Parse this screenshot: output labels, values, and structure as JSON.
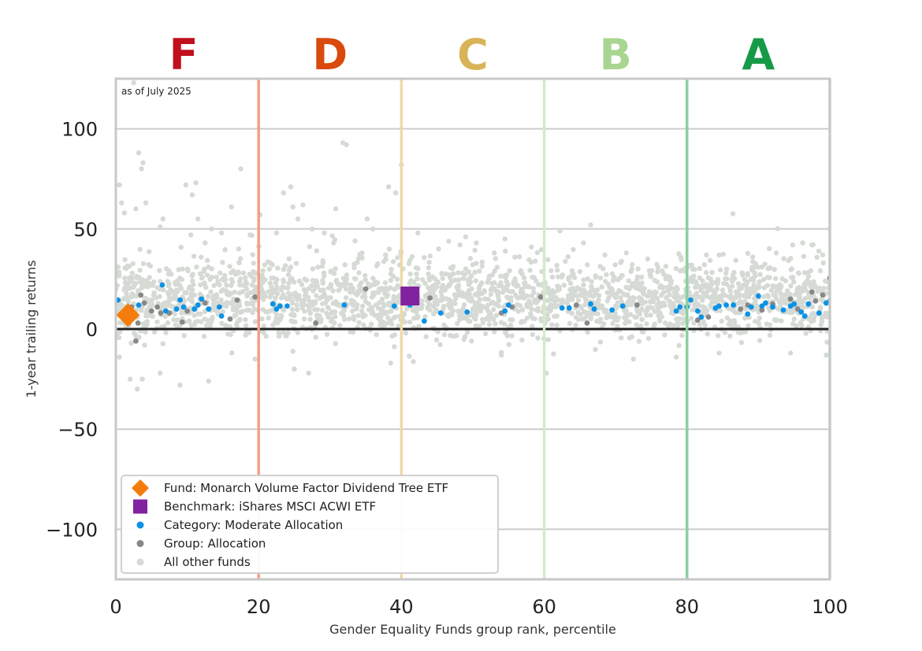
{
  "chart_data": {
    "type": "scatter",
    "title": "",
    "xlabel": "Gender Equality Funds group rank, percentile",
    "ylabel": "1-year trailing returns",
    "xlim": [
      0,
      100
    ],
    "ylim": [
      -125,
      125
    ],
    "x_ticks": [
      0,
      20,
      40,
      60,
      80,
      100
    ],
    "y_ticks": [
      100,
      50,
      0,
      -50,
      -100
    ],
    "grid": "horizontal",
    "legend_position": "lower-left",
    "note": "as of July 2025",
    "grades": [
      {
        "letter": "F",
        "x_center": 9.5,
        "color": "#c0101e"
      },
      {
        "letter": "D",
        "x_center": 30,
        "color": "#d94a0c"
      },
      {
        "letter": "C",
        "x_center": 50,
        "color": "#d9b357"
      },
      {
        "letter": "B",
        "x_center": 70,
        "color": "#a8d590"
      },
      {
        "letter": "A",
        "x_center": 90,
        "color": "#179a47"
      }
    ],
    "boundaries": [
      {
        "x": 20,
        "color": "#f0a088"
      },
      {
        "x": 40,
        "color": "#f0d9a6"
      },
      {
        "x": 60,
        "color": "#d3ebc8"
      },
      {
        "x": 80,
        "color": "#8bcf9e"
      },
      {
        "x": 100,
        "color": "#b8dcc4"
      }
    ],
    "series": [
      {
        "name": "Fund: Monarch Volume Factor Dividend Tree ETF",
        "marker": "diamond",
        "color": "#f57c0c",
        "points": [
          [
            1.7,
            7
          ]
        ]
      },
      {
        "name": "Benchmark: iShares MSCI ACWI ETF",
        "marker": "square",
        "color": "#8122a0",
        "points": [
          [
            41.2,
            16.5
          ]
        ]
      },
      {
        "name": "Category: Moderate Allocation",
        "marker": "dot",
        "color": "#0a92e6",
        "points": [
          [
            0.3,
            14.5
          ],
          [
            1.3,
            9
          ],
          [
            2.5,
            8
          ],
          [
            3.2,
            12
          ],
          [
            6.5,
            22
          ],
          [
            7,
            9
          ],
          [
            8.5,
            10
          ],
          [
            9,
            14.5
          ],
          [
            9.5,
            11
          ],
          [
            11,
            10
          ],
          [
            11.5,
            12
          ],
          [
            12,
            15
          ],
          [
            13,
            10
          ],
          [
            14.5,
            11
          ],
          [
            14.8,
            6.5
          ],
          [
            22,
            12.5
          ],
          [
            22.5,
            10
          ],
          [
            23,
            11.5
          ],
          [
            24,
            11.5
          ],
          [
            32,
            12
          ],
          [
            39,
            11.5
          ],
          [
            41.2,
            12
          ],
          [
            43.2,
            4
          ],
          [
            45.5,
            8
          ],
          [
            49.2,
            8.5
          ],
          [
            54.5,
            9
          ],
          [
            55,
            12
          ],
          [
            62.5,
            10.5
          ],
          [
            63.5,
            10.5
          ],
          [
            66.5,
            12.5
          ],
          [
            67,
            10
          ],
          [
            69.5,
            9.5
          ],
          [
            71,
            11.5
          ],
          [
            78.5,
            9
          ],
          [
            79,
            11
          ],
          [
            80,
            11
          ],
          [
            80.5,
            14.5
          ],
          [
            81.5,
            9
          ],
          [
            82,
            6
          ],
          [
            84,
            10.5
          ],
          [
            84.5,
            11.5
          ],
          [
            85.5,
            12
          ],
          [
            86.5,
            12
          ],
          [
            88.5,
            7.5
          ],
          [
            89,
            11
          ],
          [
            90,
            16.5
          ],
          [
            90.5,
            11.5
          ],
          [
            91,
            13
          ],
          [
            92,
            11
          ],
          [
            93.5,
            9.5
          ],
          [
            94.5,
            11.5
          ],
          [
            95,
            12.5
          ],
          [
            96,
            8.5
          ],
          [
            96.5,
            6.5
          ],
          [
            97,
            12.5
          ],
          [
            98.5,
            8
          ],
          [
            99.5,
            13
          ],
          [
            100,
            14
          ]
        ]
      },
      {
        "name": "Group: Allocation",
        "marker": "dot",
        "color": "#888888",
        "points": [
          [
            2.2,
            11
          ],
          [
            2.8,
            -6
          ],
          [
            3.1,
            3
          ],
          [
            3.5,
            17
          ],
          [
            4,
            13
          ],
          [
            5,
            9
          ],
          [
            5.8,
            11
          ],
          [
            6.3,
            8
          ],
          [
            7.5,
            8
          ],
          [
            9.3,
            3.5
          ],
          [
            10,
            9
          ],
          [
            12.5,
            13
          ],
          [
            16,
            5
          ],
          [
            17,
            14.5
          ],
          [
            19.5,
            16
          ],
          [
            28,
            3
          ],
          [
            35,
            20
          ],
          [
            44,
            15.5
          ],
          [
            54,
            8
          ],
          [
            55.5,
            11
          ],
          [
            59.5,
            16
          ],
          [
            64.5,
            12
          ],
          [
            66,
            3
          ],
          [
            73,
            12
          ],
          [
            81.5,
            4.5
          ],
          [
            83,
            6
          ],
          [
            87.5,
            10
          ],
          [
            88.5,
            12
          ],
          [
            90.5,
            9.5
          ],
          [
            92,
            12.5
          ],
          [
            94.5,
            15
          ],
          [
            95.5,
            10
          ],
          [
            97.5,
            18.5
          ],
          [
            98,
            14
          ],
          [
            99,
            17
          ],
          [
            100,
            25.5
          ]
        ]
      },
      {
        "name": "All other funds",
        "marker": "dot",
        "color": "#d5dad4",
        "points": [
          [
            0.5,
            72
          ],
          [
            0.8,
            63
          ],
          [
            1.2,
            58
          ],
          [
            2.5,
            123
          ],
          [
            3.2,
            88
          ],
          [
            3.6,
            80
          ],
          [
            3.8,
            83
          ],
          [
            2.8,
            60
          ],
          [
            4.2,
            63
          ],
          [
            6.2,
            51
          ],
          [
            6.6,
            55
          ],
          [
            9.8,
            72
          ],
          [
            10.7,
            67
          ],
          [
            11.2,
            73
          ],
          [
            10.5,
            47
          ],
          [
            11.5,
            55
          ],
          [
            12.5,
            43
          ],
          [
            13.4,
            50
          ],
          [
            14.8,
            48
          ],
          [
            17.5,
            80
          ],
          [
            16.2,
            61
          ],
          [
            17.2,
            40
          ],
          [
            18.8,
            47
          ],
          [
            20.2,
            57
          ],
          [
            21.5,
            30
          ],
          [
            22.5,
            48
          ],
          [
            23.5,
            68
          ],
          [
            24.5,
            71
          ],
          [
            24.8,
            61
          ],
          [
            25.5,
            55
          ],
          [
            26.2,
            62
          ],
          [
            27.5,
            50
          ],
          [
            29.2,
            48
          ],
          [
            30.5,
            43
          ],
          [
            30.8,
            60
          ],
          [
            31.8,
            93
          ],
          [
            32.3,
            92
          ],
          [
            33.5,
            44
          ],
          [
            35.2,
            55
          ],
          [
            38.2,
            71
          ],
          [
            39.2,
            68
          ],
          [
            40,
            82
          ],
          [
            36,
            50
          ],
          [
            34.5,
            38
          ],
          [
            42.3,
            48
          ],
          [
            45.2,
            40
          ],
          [
            48.2,
            42
          ],
          [
            50.5,
            43
          ],
          [
            53,
            38
          ],
          [
            54.5,
            45
          ],
          [
            58.2,
            41
          ],
          [
            62.2,
            49
          ],
          [
            65.5,
            43
          ],
          [
            66.5,
            52
          ],
          [
            68.5,
            37
          ],
          [
            71.5,
            38
          ],
          [
            74.5,
            35
          ],
          [
            84.5,
            37
          ],
          [
            89.2,
            36
          ],
          [
            92.5,
            38
          ],
          [
            94.8,
            42
          ],
          [
            96.2,
            43
          ],
          [
            97.5,
            42
          ],
          [
            99,
            37
          ],
          [
            100,
            50
          ],
          [
            2,
            -25
          ],
          [
            3,
            -30
          ],
          [
            3.7,
            -25
          ],
          [
            6.2,
            -22
          ],
          [
            9,
            -28
          ],
          [
            13,
            -26
          ],
          [
            19.5,
            -15
          ],
          [
            25,
            -20
          ],
          [
            27,
            -22
          ],
          [
            38.5,
            -17
          ],
          [
            54,
            -13
          ],
          [
            60.3,
            -22
          ],
          [
            72.5,
            -15
          ],
          [
            78.5,
            -14
          ],
          [
            84.5,
            -12
          ],
          [
            94.5,
            -12
          ],
          [
            99.5,
            -13
          ],
          [
            0.5,
            -14
          ]
        ]
      }
    ],
    "background_cloud": {
      "name": "All other funds",
      "count": 2300,
      "y_center": 15,
      "y_spread": 9,
      "color": "#d5dad4"
    }
  }
}
